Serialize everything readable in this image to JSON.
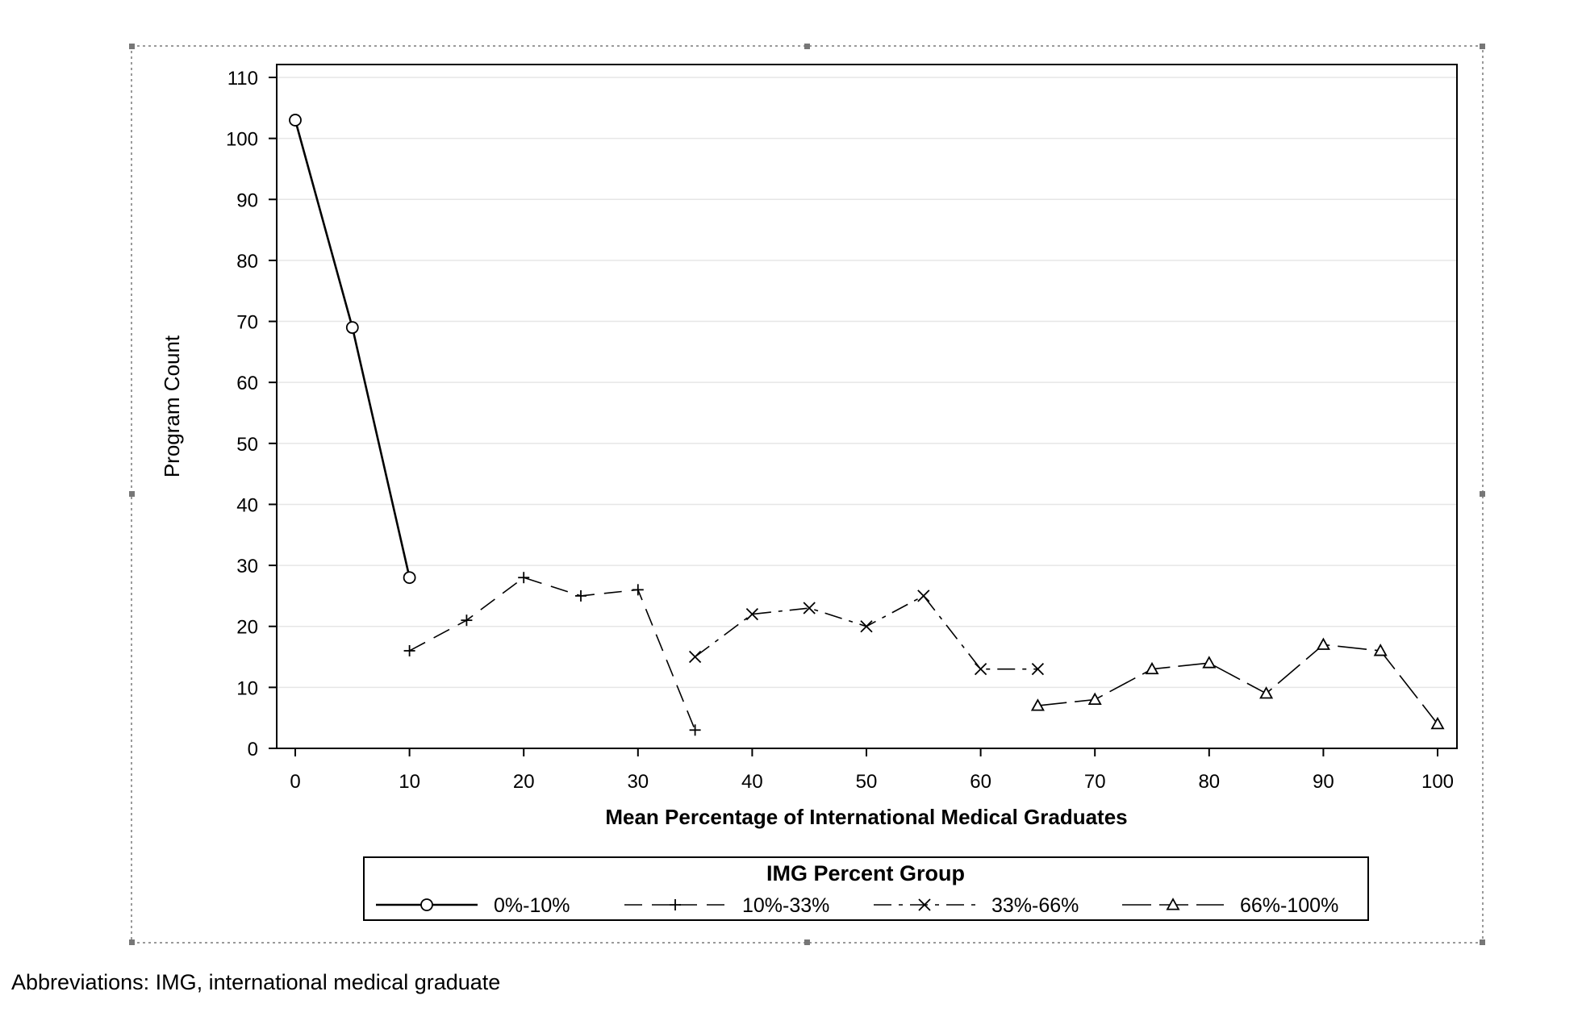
{
  "chart_data": {
    "type": "line",
    "title": "",
    "xlabel": "Mean Percentage of International Medical Graduates",
    "ylabel": "Program Count",
    "xlim": [
      0,
      100
    ],
    "ylim": [
      0,
      110
    ],
    "xticks": [
      0,
      10,
      20,
      30,
      40,
      50,
      60,
      70,
      80,
      90,
      100
    ],
    "yticks": [
      0,
      10,
      20,
      30,
      40,
      50,
      60,
      70,
      80,
      90,
      100,
      110
    ],
    "grid": "horizontal",
    "legend": {
      "title": "IMG Percent Group",
      "placement": "bottom"
    },
    "series": [
      {
        "name": "0%-10%",
        "marker": "circle",
        "dash": "solid",
        "points": [
          [
            0,
            103
          ],
          [
            5,
            69
          ],
          [
            10,
            28
          ]
        ]
      },
      {
        "name": "10%-33%",
        "marker": "plus",
        "dash": "dashed",
        "points": [
          [
            10,
            16
          ],
          [
            15,
            21
          ],
          [
            20,
            28
          ],
          [
            25,
            25
          ],
          [
            30,
            26
          ],
          [
            35,
            3
          ]
        ]
      },
      {
        "name": "33%-66%",
        "marker": "x",
        "dash": "dashdot",
        "points": [
          [
            35,
            15
          ],
          [
            40,
            22
          ],
          [
            45,
            23
          ],
          [
            50,
            20
          ],
          [
            55,
            25
          ],
          [
            60,
            13
          ],
          [
            65,
            13
          ]
        ]
      },
      {
        "name": "66%-100%",
        "marker": "triangle",
        "dash": "longdash",
        "points": [
          [
            65,
            7
          ],
          [
            70,
            8
          ],
          [
            75,
            13
          ],
          [
            80,
            14
          ],
          [
            85,
            9
          ],
          [
            90,
            17
          ],
          [
            95,
            16
          ],
          [
            100,
            4
          ]
        ]
      }
    ]
  },
  "caption": "Abbreviations: IMG, international medical graduate"
}
